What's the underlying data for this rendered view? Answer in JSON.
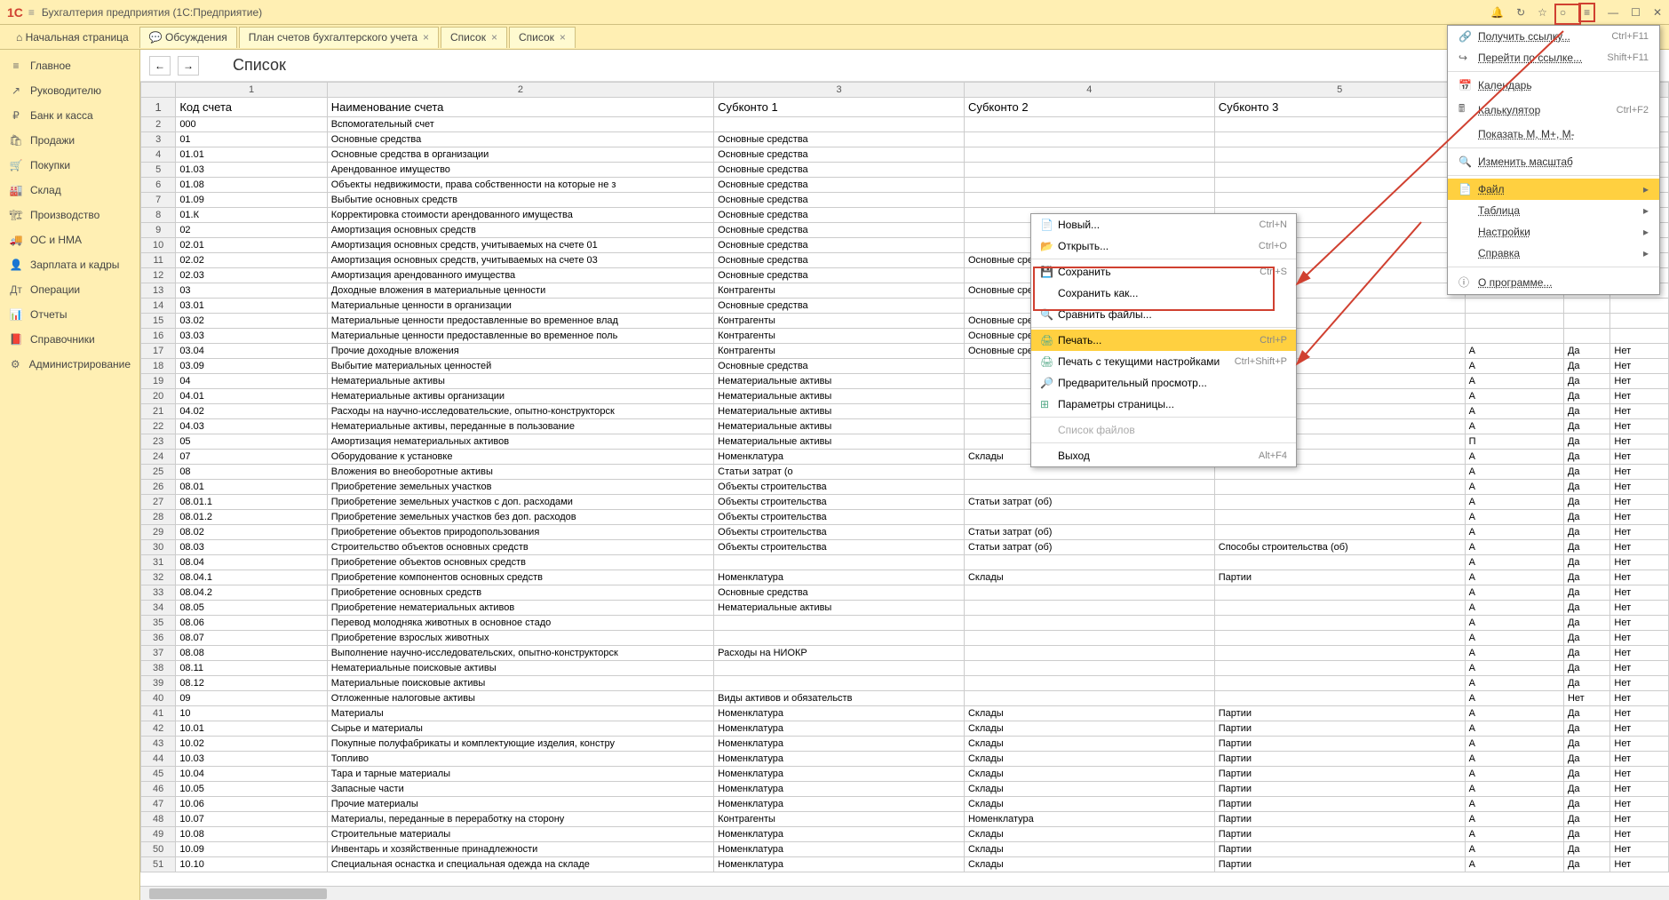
{
  "app": {
    "title": "Бухгалтерия предприятия  (1С:Предприятие)"
  },
  "tabs": {
    "home": "Начальная страница",
    "t1": "Обсуждения",
    "t2": "План счетов бухгалтерского учета",
    "t3": "Список",
    "t4": "Список"
  },
  "sidebar": [
    {
      "ic": "≡",
      "lbl": "Главное"
    },
    {
      "ic": "↗",
      "lbl": "Руководителю"
    },
    {
      "ic": "₽",
      "lbl": "Банк и касса"
    },
    {
      "ic": "🛍",
      "lbl": "Продажи"
    },
    {
      "ic": "🛒",
      "lbl": "Покупки"
    },
    {
      "ic": "🏭",
      "lbl": "Склад"
    },
    {
      "ic": "🏗",
      "lbl": "Производство"
    },
    {
      "ic": "🚚",
      "lbl": "ОС и НМА"
    },
    {
      "ic": "👤",
      "lbl": "Зарплата и кадры"
    },
    {
      "ic": "Дт",
      "lbl": "Операции"
    },
    {
      "ic": "📊",
      "lbl": "Отчеты"
    },
    {
      "ic": "📕",
      "lbl": "Справочники"
    },
    {
      "ic": "⚙",
      "lbl": "Администрирование"
    }
  ],
  "page": {
    "title": "Список"
  },
  "colheaders": [
    "1",
    "2",
    "3",
    "4",
    "5"
  ],
  "tableheader": {
    "a": "Код счета",
    "b": "Наименование счета",
    "c": "Субконто 1",
    "d": "Субконто 2",
    "e": "Субконто 3"
  },
  "rows": [
    {
      "n": 2,
      "a": "000",
      "b": "Вспомогательный счет",
      "c": "",
      "d": "",
      "e": "",
      "f": "",
      "g": "",
      "h": ""
    },
    {
      "n": 3,
      "a": "01",
      "b": "Основные средства",
      "c": "Основные средства",
      "d": "",
      "e": "",
      "f": "",
      "g": "",
      "h": ""
    },
    {
      "n": 4,
      "a": "01.01",
      "b": "Основные средства в организации",
      "c": "Основные средства",
      "d": "",
      "e": "",
      "f": "",
      "g": "",
      "h": ""
    },
    {
      "n": 5,
      "a": "01.03",
      "b": "Арендованное имущество",
      "c": "Основные средства",
      "d": "",
      "e": "",
      "f": "",
      "g": "",
      "h": ""
    },
    {
      "n": 6,
      "a": "01.08",
      "b": "Объекты недвижимости, права собственности на которые не з",
      "c": "Основные средства",
      "d": "",
      "e": "",
      "f": "",
      "g": "",
      "h": ""
    },
    {
      "n": 7,
      "a": "01.09",
      "b": "Выбытие основных средств",
      "c": "Основные средства",
      "d": "",
      "e": "",
      "f": "",
      "g": "",
      "h": ""
    },
    {
      "n": 8,
      "a": "01.К",
      "b": "Корректировка стоимости арендованного имущества",
      "c": "Основные средства",
      "d": "",
      "e": "",
      "f": "",
      "g": "",
      "h": ""
    },
    {
      "n": 9,
      "a": "02",
      "b": "Амортизация основных средств",
      "c": "Основные средства",
      "d": "",
      "e": "",
      "f": "",
      "g": "",
      "h": ""
    },
    {
      "n": 10,
      "a": "02.01",
      "b": "Амортизация основных средств, учитываемых на счете 01",
      "c": "Основные средства",
      "d": "",
      "e": "",
      "f": "",
      "g": "",
      "h": ""
    },
    {
      "n": 11,
      "a": "02.02",
      "b": "Амортизация основных средств, учитываемых на счете 03",
      "c": "Основные средства",
      "d": "Основные средства",
      "e": "",
      "f": "",
      "g": "",
      "h": ""
    },
    {
      "n": 12,
      "a": "02.03",
      "b": "Амортизация арендованного имущества",
      "c": "Основные средства",
      "d": "",
      "e": "",
      "f": "",
      "g": "",
      "h": ""
    },
    {
      "n": 13,
      "a": "03",
      "b": "Доходные вложения в материальные ценности",
      "c": "Контрагенты",
      "d": "Основные средства",
      "e": "",
      "f": "",
      "g": "",
      "h": ""
    },
    {
      "n": 14,
      "a": "03.01",
      "b": "Материальные ценности в организации",
      "c": "Основные средства",
      "d": "",
      "e": "",
      "f": "",
      "g": "",
      "h": ""
    },
    {
      "n": 15,
      "a": "03.02",
      "b": "Материальные ценности предоставленные во временное влад",
      "c": "Контрагенты",
      "d": "Основные средства",
      "e": "",
      "f": "",
      "g": "",
      "h": ""
    },
    {
      "n": 16,
      "a": "03.03",
      "b": "Материальные ценности предоставленные во временное поль",
      "c": "Контрагенты",
      "d": "Основные средства",
      "e": "",
      "f": "",
      "g": "",
      "h": ""
    },
    {
      "n": 17,
      "a": "03.04",
      "b": "Прочие доходные вложения",
      "c": "Контрагенты",
      "d": "Основные сред",
      "e": "",
      "f": "А",
      "g": "Да",
      "h": "Нет"
    },
    {
      "n": 18,
      "a": "03.09",
      "b": "Выбытие материальных ценностей",
      "c": "Основные средства",
      "d": "",
      "e": "",
      "f": "А",
      "g": "Да",
      "h": "Нет"
    },
    {
      "n": 19,
      "a": "04",
      "b": "Нематериальные активы",
      "c": "Нематериальные активы",
      "d": "",
      "e": "",
      "f": "А",
      "g": "Да",
      "h": "Нет"
    },
    {
      "n": 20,
      "a": "04.01",
      "b": "Нематериальные активы организации",
      "c": "Нематериальные активы",
      "d": "",
      "e": "",
      "f": "А",
      "g": "Да",
      "h": "Нет"
    },
    {
      "n": 21,
      "a": "04.02",
      "b": "Расходы на научно-исследовательские, опытно-конструкторск",
      "c": "Нематериальные активы",
      "d": "",
      "e": "",
      "f": "А",
      "g": "Да",
      "h": "Нет"
    },
    {
      "n": 22,
      "a": "04.03",
      "b": "Нематериальные активы, переданные в пользование",
      "c": "Нематериальные активы",
      "d": "",
      "e": "",
      "f": "А",
      "g": "Да",
      "h": "Нет"
    },
    {
      "n": 23,
      "a": "05",
      "b": "Амортизация нематериальных активов",
      "c": "Нематериальные активы",
      "d": "",
      "e": "",
      "f": "П",
      "g": "Да",
      "h": "Нет"
    },
    {
      "n": 24,
      "a": "07",
      "b": "Оборудование к установке",
      "c": "Номенклатура",
      "d": "Склады",
      "e": "",
      "f": "А",
      "g": "Да",
      "h": "Нет"
    },
    {
      "n": 25,
      "a": "08",
      "b": "Вложения во внеоборотные активы",
      "c": "Статьи затрат (о",
      "d": "",
      "e": "",
      "f": "А",
      "g": "Да",
      "h": "Нет"
    },
    {
      "n": 26,
      "a": "08.01",
      "b": "Приобретение земельных участков",
      "c": "Объекты строительства",
      "d": "",
      "e": "",
      "f": "А",
      "g": "Да",
      "h": "Нет"
    },
    {
      "n": 27,
      "a": "08.01.1",
      "b": "Приобретение земельных участков с доп. расходами",
      "c": "Объекты строительства",
      "d": "Статьи затрат (об)",
      "e": "",
      "f": "А",
      "g": "Да",
      "h": "Нет"
    },
    {
      "n": 28,
      "a": "08.01.2",
      "b": "Приобретение земельных участков без доп. расходов",
      "c": "Объекты строительства",
      "d": "",
      "e": "",
      "f": "А",
      "g": "Да",
      "h": "Нет"
    },
    {
      "n": 29,
      "a": "08.02",
      "b": "Приобретение объектов природопользования",
      "c": "Объекты строительства",
      "d": "Статьи затрат (об)",
      "e": "",
      "f": "А",
      "g": "Да",
      "h": "Нет"
    },
    {
      "n": 30,
      "a": "08.03",
      "b": "Строительство объектов основных средств",
      "c": "Объекты строительства",
      "d": "Статьи затрат (об)",
      "e": "Способы строительства (об)",
      "f": "А",
      "g": "Да",
      "h": "Нет"
    },
    {
      "n": 31,
      "a": "08.04",
      "b": "Приобретение объектов основных средств",
      "c": "",
      "d": "",
      "e": "",
      "f": "А",
      "g": "Да",
      "h": "Нет"
    },
    {
      "n": 32,
      "a": "08.04.1",
      "b": "Приобретение компонентов основных средств",
      "c": "Номенклатура",
      "d": "Склады",
      "e": "Партии",
      "f": "А",
      "g": "Да",
      "h": "Нет"
    },
    {
      "n": 33,
      "a": "08.04.2",
      "b": "Приобретение основных средств",
      "c": "Основные средства",
      "d": "",
      "e": "",
      "f": "А",
      "g": "Да",
      "h": "Нет"
    },
    {
      "n": 34,
      "a": "08.05",
      "b": "Приобретение нематериальных активов",
      "c": "Нематериальные активы",
      "d": "",
      "e": "",
      "f": "А",
      "g": "Да",
      "h": "Нет"
    },
    {
      "n": 35,
      "a": "08.06",
      "b": "Перевод молодняка животных в основное стадо",
      "c": "",
      "d": "",
      "e": "",
      "f": "А",
      "g": "Да",
      "h": "Нет"
    },
    {
      "n": 36,
      "a": "08.07",
      "b": "Приобретение взрослых животных",
      "c": "",
      "d": "",
      "e": "",
      "f": "А",
      "g": "Да",
      "h": "Нет"
    },
    {
      "n": 37,
      "a": "08.08",
      "b": "Выполнение научно-исследовательских, опытно-конструкторск",
      "c": "Расходы на НИОКР",
      "d": "",
      "e": "",
      "f": "А",
      "g": "Да",
      "h": "Нет"
    },
    {
      "n": 38,
      "a": "08.11",
      "b": "Нематериальные поисковые активы",
      "c": "",
      "d": "",
      "e": "",
      "f": "А",
      "g": "Да",
      "h": "Нет"
    },
    {
      "n": 39,
      "a": "08.12",
      "b": "Материальные поисковые активы",
      "c": "",
      "d": "",
      "e": "",
      "f": "А",
      "g": "Да",
      "h": "Нет"
    },
    {
      "n": 40,
      "a": "09",
      "b": "Отложенные налоговые активы",
      "c": "Виды активов и обязательств",
      "d": "",
      "e": "",
      "f": "А",
      "g": "Нет",
      "h": "Нет"
    },
    {
      "n": 41,
      "a": "10",
      "b": "Материалы",
      "c": "Номенклатура",
      "d": "Склады",
      "e": "Партии",
      "f": "А",
      "g": "Да",
      "h": "Нет"
    },
    {
      "n": 42,
      "a": "10.01",
      "b": "Сырье и материалы",
      "c": "Номенклатура",
      "d": "Склады",
      "e": "Партии",
      "f": "А",
      "g": "Да",
      "h": "Нет"
    },
    {
      "n": 43,
      "a": "10.02",
      "b": "Покупные полуфабрикаты и комплектующие изделия, констру",
      "c": "Номенклатура",
      "d": "Склады",
      "e": "Партии",
      "f": "А",
      "g": "Да",
      "h": "Нет"
    },
    {
      "n": 44,
      "a": "10.03",
      "b": "Топливо",
      "c": "Номенклатура",
      "d": "Склады",
      "e": "Партии",
      "f": "А",
      "g": "Да",
      "h": "Нет"
    },
    {
      "n": 45,
      "a": "10.04",
      "b": "Тара и тарные материалы",
      "c": "Номенклатура",
      "d": "Склады",
      "e": "Партии",
      "f": "А",
      "g": "Да",
      "h": "Нет"
    },
    {
      "n": 46,
      "a": "10.05",
      "b": "Запасные части",
      "c": "Номенклатура",
      "d": "Склады",
      "e": "Партии",
      "f": "А",
      "g": "Да",
      "h": "Нет"
    },
    {
      "n": 47,
      "a": "10.06",
      "b": "Прочие материалы",
      "c": "Номенклатура",
      "d": "Склады",
      "e": "Партии",
      "f": "А",
      "g": "Да",
      "h": "Нет"
    },
    {
      "n": 48,
      "a": "10.07",
      "b": "Материалы, переданные в переработку на сторону",
      "c": "Контрагенты",
      "d": "Номенклатура",
      "e": "Партии",
      "f": "А",
      "g": "Да",
      "h": "Нет"
    },
    {
      "n": 49,
      "a": "10.08",
      "b": "Строительные материалы",
      "c": "Номенклатура",
      "d": "Склады",
      "e": "Партии",
      "f": "А",
      "g": "Да",
      "h": "Нет"
    },
    {
      "n": 50,
      "a": "10.09",
      "b": "Инвентарь и хозяйственные принадлежности",
      "c": "Номенклатура",
      "d": "Склады",
      "e": "Партии",
      "f": "А",
      "g": "Да",
      "h": "Нет"
    },
    {
      "n": 51,
      "a": "10.10",
      "b": "Специальная оснастка и специальная одежда на складе",
      "c": "Номенклатура",
      "d": "Склады",
      "e": "Партии",
      "f": "А",
      "g": "Да",
      "h": "Нет"
    }
  ],
  "ctx": {
    "new": {
      "lbl": "Новый...",
      "sc": "Ctrl+N"
    },
    "open": {
      "lbl": "Открыть...",
      "sc": "Ctrl+O"
    },
    "save": {
      "lbl": "Сохранить",
      "sc": "Ctrl+S"
    },
    "saveas": {
      "lbl": "Сохранить как...",
      "sc": ""
    },
    "compare": {
      "lbl": "Сравнить файлы...",
      "sc": ""
    },
    "print": {
      "lbl": "Печать...",
      "sc": "Ctrl+P"
    },
    "printcur": {
      "lbl": "Печать с текущими настройками",
      "sc": "Ctrl+Shift+P"
    },
    "preview": {
      "lbl": "Предварительный просмотр...",
      "sc": ""
    },
    "pagesetup": {
      "lbl": "Параметры страницы...",
      "sc": ""
    },
    "filelist": {
      "lbl": "Список файлов",
      "sc": ""
    },
    "exit": {
      "lbl": "Выход",
      "sc": "Alt+F4"
    }
  },
  "dd": {
    "getlink": {
      "lbl": "Получить ссылку...",
      "sc": "Ctrl+F11"
    },
    "gotolink": {
      "lbl": "Перейти по ссылке...",
      "sc": "Shift+F11"
    },
    "calendar": {
      "lbl": "Календарь",
      "sc": ""
    },
    "calc": {
      "lbl": "Калькулятор",
      "sc": "Ctrl+F2"
    },
    "showm": {
      "lbl": "Показать M, M+, M-",
      "sc": ""
    },
    "zoom": {
      "lbl": "Изменить масштаб",
      "sc": ""
    },
    "file": {
      "lbl": "Файл",
      "sc": ""
    },
    "table": {
      "lbl": "Таблица",
      "sc": ""
    },
    "settings": {
      "lbl": "Настройки",
      "sc": ""
    },
    "help": {
      "lbl": "Справка",
      "sc": ""
    },
    "about": {
      "lbl": "О программе...",
      "sc": ""
    }
  }
}
